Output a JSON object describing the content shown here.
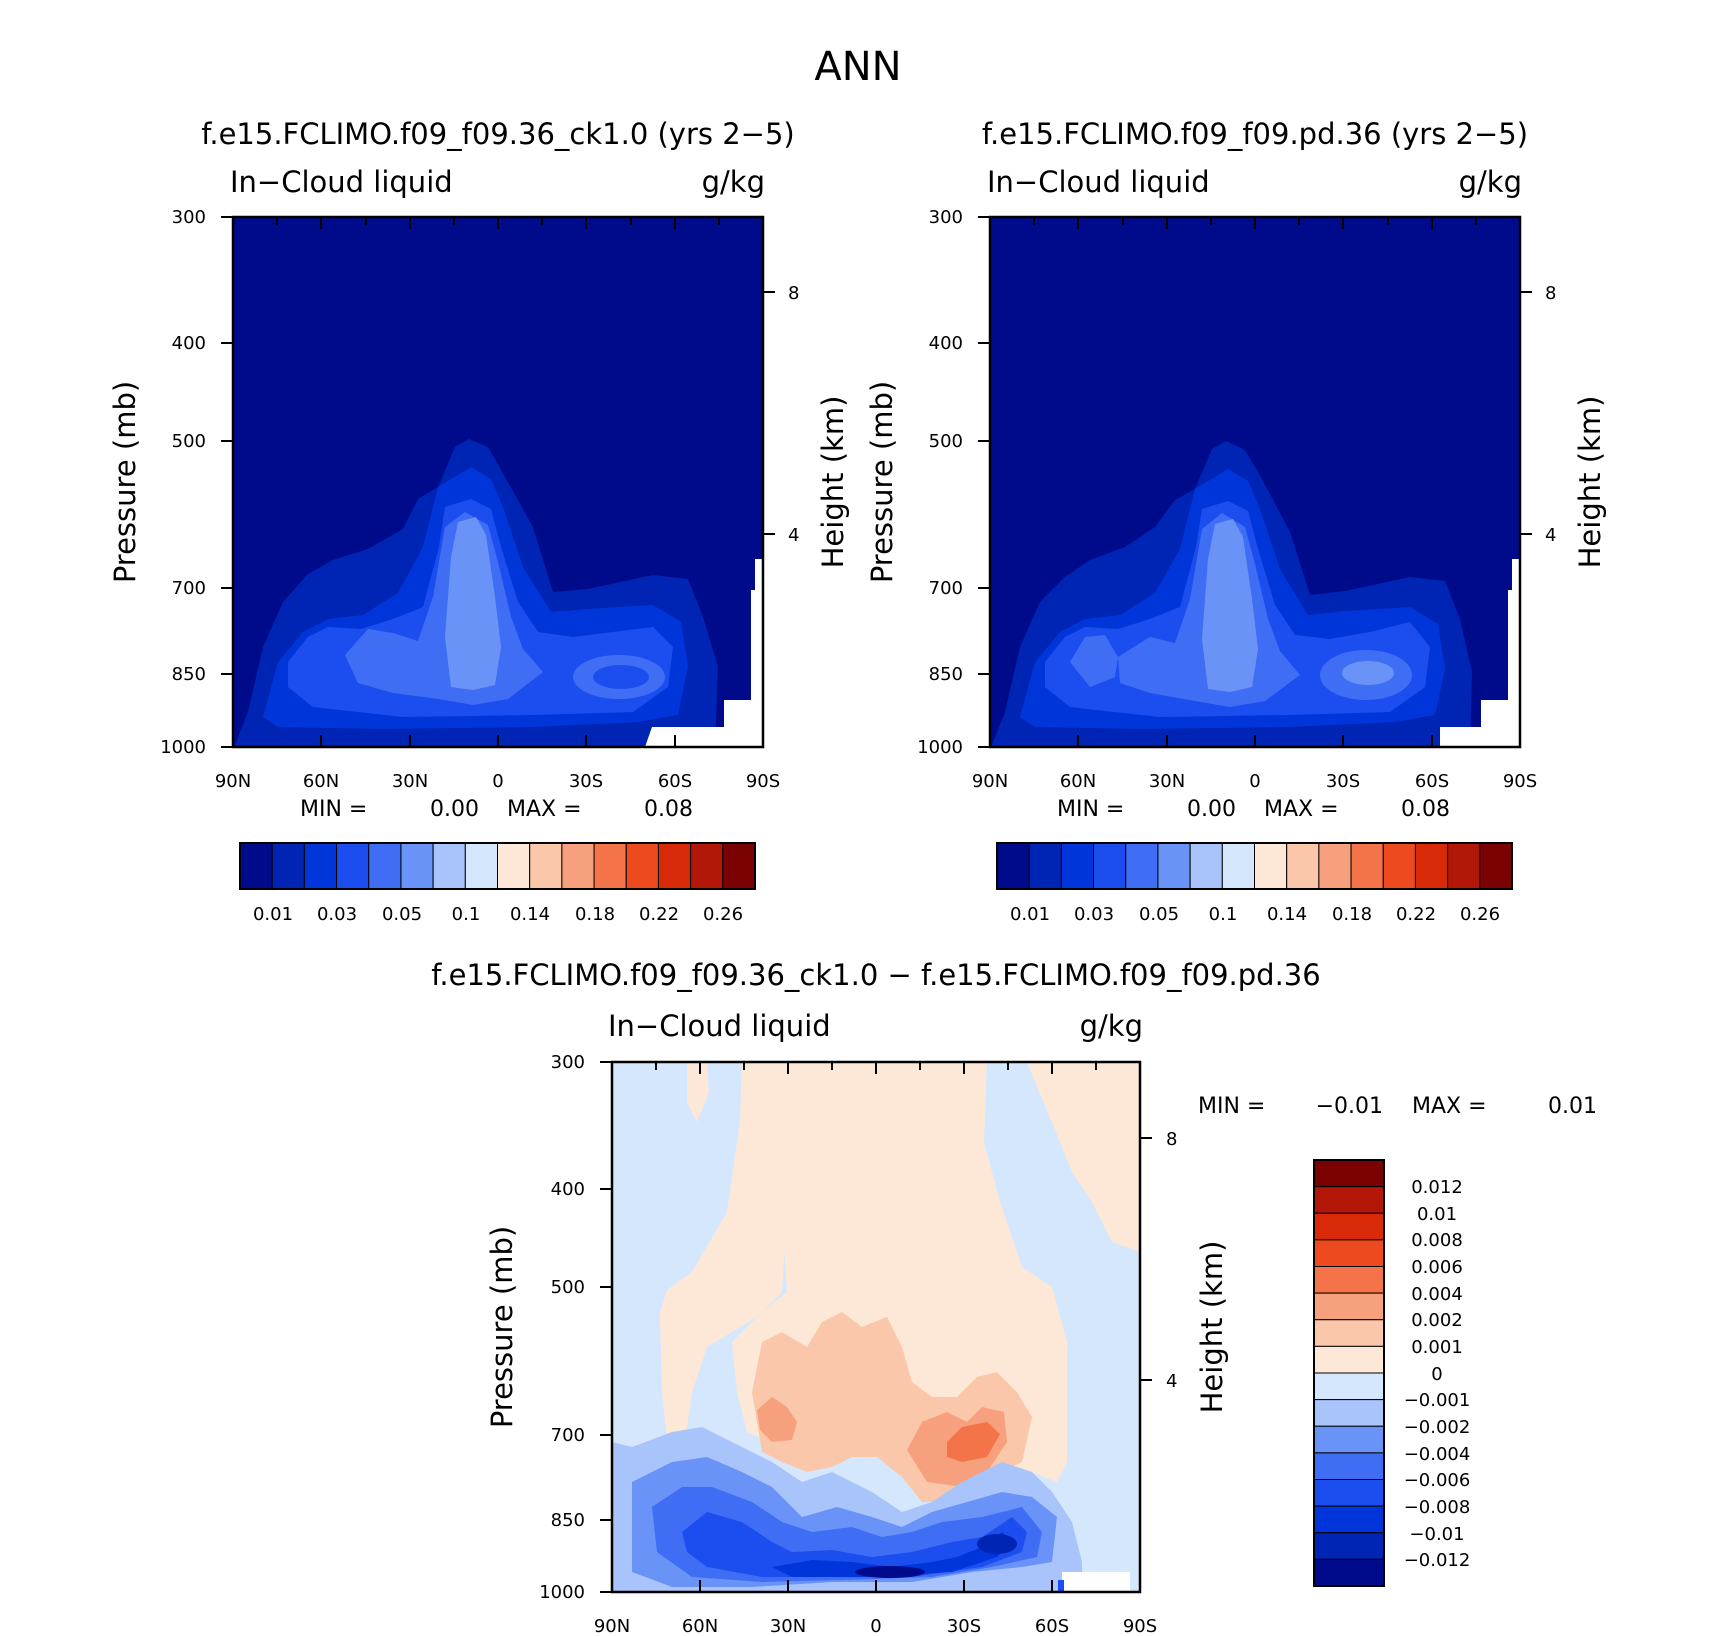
{
  "figure_title": "ANN",
  "panels": [
    {
      "title": "f.e15.FCLIMO.f09_f09.36_ck1.0 (yrs 2-5)",
      "variable": "In-Cloud liquid",
      "units": "g/kg",
      "min_label": "MIN =",
      "min_value": "0.00",
      "max_label": "MAX =",
      "max_value": "0.08",
      "ylabel": "Pressure (mb)",
      "ylabel_right": "Height (km)"
    },
    {
      "title": "f.e15.FCLIMO.f09_f09.pd.36 (yrs 2-5)",
      "variable": "In-Cloud liquid",
      "units": "g/kg",
      "min_label": "MIN =",
      "min_value": "0.00",
      "max_label": "MAX =",
      "max_value": "0.08",
      "ylabel": "Pressure (mb)",
      "ylabel_right": "Height (km)"
    },
    {
      "title": "f.e15.FCLIMO.f09_f09.36_ck1.0 - f.e15.FCLIMO.f09_f09.pd.36",
      "variable": "In-Cloud liquid",
      "units": "g/kg",
      "min_label": "MIN =",
      "min_value": "-0.01",
      "max_label": "MAX =",
      "max_value": "0.01",
      "ylabel": "Pressure (mb)",
      "ylabel_right": "Height (km)"
    }
  ],
  "chart_data": [
    {
      "type": "heatmap",
      "panel": "model",
      "title": "f.e15.FCLIMO.f09_f09.36_ck1.0 (yrs 2-5)",
      "x_ticks": [
        "90N",
        "60N",
        "30N",
        "0",
        "30S",
        "60S",
        "90S"
      ],
      "y_ticks": [
        300,
        400,
        500,
        700,
        850,
        1000
      ],
      "y_range": [
        1000,
        300
      ],
      "y_right_ticks": [
        8,
        4
      ],
      "colorbar_ticks": [
        "0.01",
        "0.03",
        "0.05",
        "0.1",
        "0.14",
        "0.18",
        "0.22",
        "0.26"
      ],
      "colors": [
        "#000b8c",
        "#0024b4",
        "#0036d9",
        "#1c4eef",
        "#3f6ef5",
        "#6a93f8",
        "#a9c4fb",
        "#d5e7fd",
        "#fde8d8",
        "#fbc7aa",
        "#f7a07d",
        "#f47348",
        "#ee4a1f",
        "#d82a08",
        "#b21707",
        "#7b0202"
      ],
      "contour_levels": [
        0.01,
        0.02,
        0.03,
        0.04,
        0.05,
        0.07
      ]
    },
    {
      "type": "heatmap",
      "panel": "control",
      "title": "f.e15.FCLIMO.f09_f09.pd.36 (yrs 2-5)",
      "x_ticks": [
        "90N",
        "60N",
        "30N",
        "0",
        "30S",
        "60S",
        "90S"
      ],
      "y_ticks": [
        300,
        400,
        500,
        700,
        850,
        1000
      ],
      "y_range": [
        1000,
        300
      ],
      "y_right_ticks": [
        8,
        4
      ],
      "colorbar_ticks": [
        "0.01",
        "0.03",
        "0.05",
        "0.1",
        "0.14",
        "0.18",
        "0.22",
        "0.26"
      ],
      "colors": [
        "#000b8c",
        "#0024b4",
        "#0036d9",
        "#1c4eef",
        "#3f6ef5",
        "#6a93f8",
        "#a9c4fb",
        "#d5e7fd",
        "#fde8d8",
        "#fbc7aa",
        "#f7a07d",
        "#f47348",
        "#ee4a1f",
        "#d82a08",
        "#b21707",
        "#7b0202"
      ],
      "contour_levels": [
        0.01,
        0.02,
        0.03,
        0.04,
        0.05,
        0.07
      ]
    },
    {
      "type": "heatmap",
      "panel": "difference",
      "title": "f.e15.FCLIMO.f09_f09.36_ck1.0 - f.e15.FCLIMO.f09_f09.pd.36",
      "x_ticks": [
        "90N",
        "60N",
        "30N",
        "0",
        "30S",
        "60S",
        "90S"
      ],
      "y_ticks": [
        300,
        400,
        500,
        700,
        850,
        1000
      ],
      "y_range": [
        1000,
        300
      ],
      "y_right_ticks": [
        8,
        4
      ],
      "colorbar_ticks": [
        "0.012",
        "0.01",
        "0.008",
        "0.006",
        "0.004",
        "0.002",
        "0.001",
        "0",
        "-0.001",
        "-0.002",
        "-0.004",
        "-0.006",
        "-0.008",
        "-0.01",
        "-0.012"
      ],
      "colors": [
        "#7b0202",
        "#b21707",
        "#d82a08",
        "#ee4a1f",
        "#f47348",
        "#f7a07d",
        "#fbc7aa",
        "#fde8d8",
        "#d5e7fd",
        "#a9c4fb",
        "#6a93f8",
        "#3f6ef5",
        "#1c4eef",
        "#0036d9",
        "#0024b4",
        "#000b8c"
      ]
    }
  ]
}
